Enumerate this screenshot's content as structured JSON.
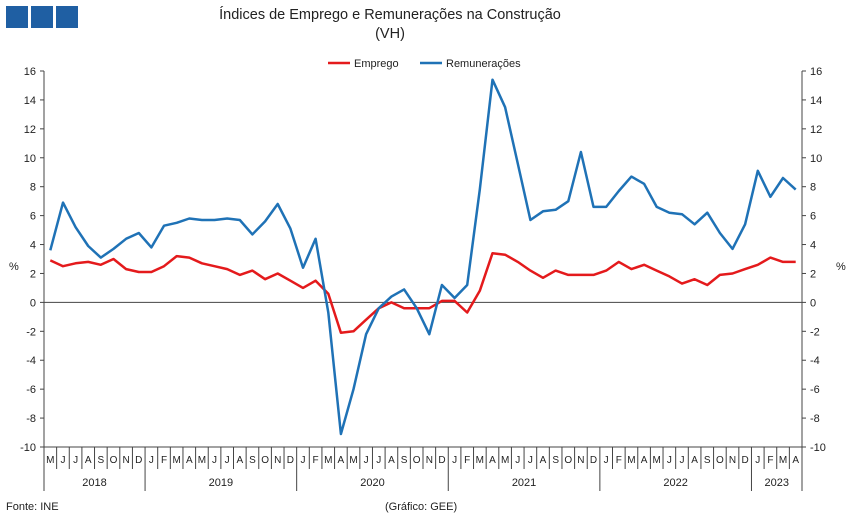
{
  "header": {
    "logo_icon": "ine-logo-icon",
    "title": "Índices de Emprego e Remunerações na Construção",
    "subtitle": "(VH)"
  },
  "footer": {
    "source": "Fonte: INE",
    "credit": "(Gráfico: GEE)"
  },
  "chart_data": {
    "type": "line",
    "ylabel_left": "%",
    "ylabel_right": "%",
    "ylim": [
      -10,
      16
    ],
    "yticks": [
      -10,
      -8,
      -6,
      -4,
      -2,
      0,
      2,
      4,
      6,
      8,
      10,
      12,
      14,
      16
    ],
    "grid": false,
    "legend_position": "top-center",
    "month_labels": [
      "M",
      "J",
      "J",
      "A",
      "S",
      "O",
      "N",
      "D",
      "J",
      "F",
      "M",
      "A",
      "M",
      "J",
      "J",
      "A",
      "S",
      "O",
      "N",
      "D",
      "J",
      "F",
      "M",
      "A",
      "M",
      "J",
      "J",
      "A",
      "S",
      "O",
      "N",
      "D",
      "J",
      "F",
      "M",
      "A",
      "M",
      "J",
      "J",
      "A",
      "S",
      "O",
      "N",
      "D",
      "J",
      "F",
      "M",
      "A",
      "M",
      "J",
      "J",
      "A",
      "S",
      "O",
      "N",
      "D",
      "J",
      "F",
      "M",
      "A"
    ],
    "years": [
      {
        "label": "2018",
        "start": 0,
        "count": 8
      },
      {
        "label": "2019",
        "start": 8,
        "count": 12
      },
      {
        "label": "2020",
        "start": 20,
        "count": 12
      },
      {
        "label": "2021",
        "start": 32,
        "count": 12
      },
      {
        "label": "2022",
        "start": 44,
        "count": 12
      },
      {
        "label": "2023",
        "start": 56,
        "count": 4
      }
    ],
    "series": [
      {
        "name": "Emprego",
        "color": "#e41a1c",
        "values": [
          2.9,
          2.5,
          2.7,
          2.8,
          2.6,
          3.0,
          2.3,
          2.1,
          2.1,
          2.5,
          3.2,
          3.1,
          2.7,
          2.5,
          2.3,
          1.9,
          2.2,
          1.6,
          2.0,
          1.5,
          1.0,
          1.5,
          0.6,
          -2.1,
          -2.0,
          -1.2,
          -0.4,
          0.0,
          -0.4,
          -0.4,
          -0.4,
          0.1,
          0.1,
          -0.7,
          0.8,
          3.4,
          3.3,
          2.8,
          2.2,
          1.7,
          2.2,
          1.9,
          1.9,
          1.9,
          2.2,
          2.8,
          2.3,
          2.6,
          2.2,
          1.8,
          1.3,
          1.6,
          1.2,
          1.9,
          2.0,
          2.3,
          2.6,
          3.1,
          2.8,
          2.8
        ]
      },
      {
        "name": "Remunerações",
        "color": "#1f72b6",
        "values": [
          3.6,
          6.9,
          5.2,
          3.9,
          3.1,
          3.7,
          4.4,
          4.8,
          3.8,
          5.3,
          5.5,
          5.8,
          5.7,
          5.7,
          5.8,
          5.7,
          4.7,
          5.6,
          6.8,
          5.1,
          2.4,
          4.4,
          -0.7,
          -9.1,
          -6.0,
          -2.2,
          -0.4,
          0.4,
          0.9,
          -0.4,
          -2.2,
          1.2,
          0.3,
          1.2,
          7.8,
          15.4,
          13.5,
          9.6,
          5.7,
          6.3,
          6.4,
          7.0,
          10.4,
          6.6,
          6.6,
          7.7,
          8.7,
          8.2,
          6.6,
          6.2,
          6.1,
          5.4,
          6.2,
          4.8,
          3.7,
          5.4,
          9.1,
          7.3,
          8.6,
          7.8
        ]
      }
    ]
  }
}
